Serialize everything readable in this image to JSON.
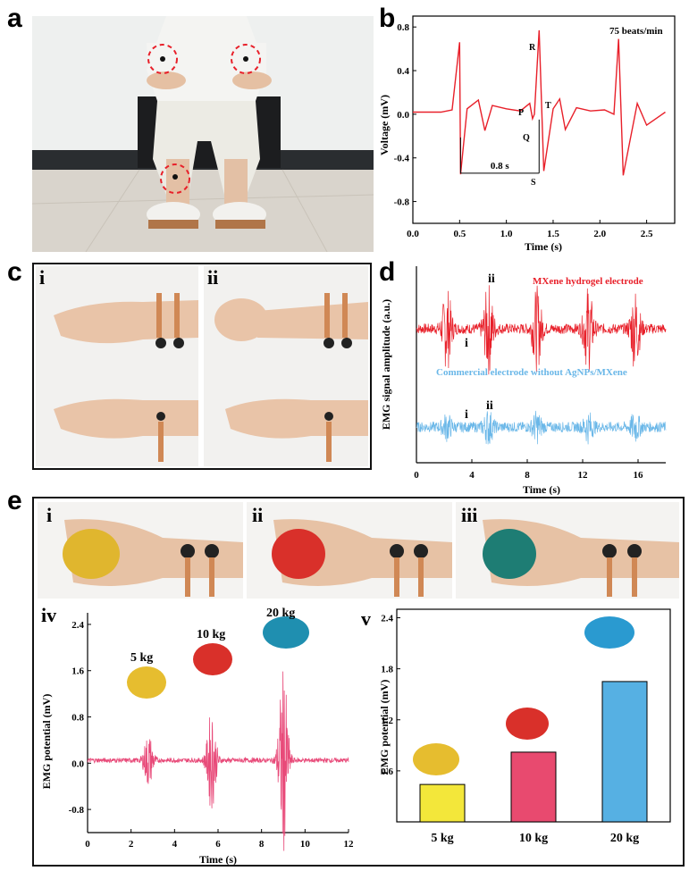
{
  "panels": {
    "a": {
      "letter": "a"
    },
    "b": {
      "letter": "b",
      "annotation": "75 beats/min",
      "interval_label": "0.8 s",
      "wave_labels": [
        "P",
        "Q",
        "R",
        "S",
        "T"
      ]
    },
    "c": {
      "letter": "c",
      "sub": [
        "i",
        "ii"
      ]
    },
    "d": {
      "letter": "d",
      "sub_top": [
        "i",
        "ii"
      ],
      "sub_bottom": [
        "i",
        "ii"
      ]
    },
    "e": {
      "letter": "e",
      "sub": [
        "i",
        "ii",
        "iii",
        "iv",
        "v"
      ]
    }
  },
  "chart_data": [
    {
      "id": "b",
      "type": "line",
      "xlabel": "Time (s)",
      "ylabel": "Voltage (mV)",
      "xlim": [
        0,
        2.8
      ],
      "ylim": [
        -1.0,
        0.9
      ],
      "xticks": [
        "0.0",
        "0.5",
        "1.0",
        "1.5",
        "2.0",
        "2.5"
      ],
      "yticks": [
        "-0.8",
        "-0.4",
        "0.0",
        "0.4",
        "0.8"
      ],
      "color": "#e8202a",
      "series": [
        {
          "x": [
            0.0,
            0.3,
            0.42,
            0.5,
            0.51,
            0.58,
            0.7,
            0.77,
            0.85,
            1.0,
            1.15,
            1.25,
            1.28,
            1.3,
            1.35,
            1.4,
            1.5,
            1.57,
            1.63,
            1.75,
            1.9,
            2.05,
            2.15,
            2.2,
            2.25,
            2.4,
            2.5,
            2.7
          ],
          "y": [
            0.02,
            0.02,
            0.04,
            0.66,
            -0.55,
            0.05,
            0.13,
            -0.15,
            0.08,
            0.05,
            0.03,
            0.1,
            -0.04,
            0.0,
            0.77,
            -0.52,
            0.05,
            0.14,
            -0.14,
            0.06,
            0.03,
            0.04,
            0.0,
            0.69,
            -0.56,
            0.1,
            -0.1,
            0.02
          ]
        }
      ]
    },
    {
      "id": "d",
      "type": "line",
      "xlabel": "Time (s)",
      "ylabel": "EMG signal amplitude (a.u.)",
      "xlim": [
        0,
        18
      ],
      "xticks": [
        "0",
        "4",
        "8",
        "12",
        "16"
      ],
      "series": [
        {
          "name": "MXene hydrogel electrode",
          "color": "#e8202a",
          "bursts": [
            {
              "t": 2.2,
              "a": 0.9
            },
            {
              "t": 5.2,
              "a": 1.0
            },
            {
              "t": 8.7,
              "a": 0.9
            },
            {
              "t": 12.4,
              "a": 0.95
            },
            {
              "t": 15.8,
              "a": 0.9
            }
          ]
        },
        {
          "name": "Commercial electrode without AgNPs/MXene",
          "color": "#6ab7e8",
          "bursts": [
            {
              "t": 2.2,
              "a": 0.25
            },
            {
              "t": 5.2,
              "a": 0.35
            },
            {
              "t": 8.7,
              "a": 0.3
            },
            {
              "t": 12.4,
              "a": 0.3
            },
            {
              "t": 15.8,
              "a": 0.3
            }
          ]
        }
      ]
    },
    {
      "id": "e-iv",
      "type": "line",
      "xlabel": "Time (s)",
      "ylabel": "EMG potential (mV)",
      "xlim": [
        0,
        12
      ],
      "ylim": [
        -1.2,
        2.6
      ],
      "xticks": [
        "0",
        "2",
        "4",
        "6",
        "8",
        "10",
        "12"
      ],
      "yticks": [
        "-0.8",
        "0.0",
        "0.8",
        "1.6",
        "2.4"
      ],
      "color": "#e84a79",
      "annotations": [
        "5 kg",
        "10 kg",
        "20 kg"
      ],
      "series": [
        {
          "bursts": [
            {
              "t": 2.8,
              "a": 0.45
            },
            {
              "t": 5.7,
              "a": 0.85
            },
            {
              "t": 9.0,
              "a": 1.6
            }
          ]
        }
      ]
    },
    {
      "id": "e-v",
      "type": "bar",
      "ylabel": "EMG potential (mV)",
      "ylim": [
        0.0,
        2.5
      ],
      "yticks": [
        "0.6",
        "1.2",
        "1.8",
        "2.4"
      ],
      "categories": [
        "5 kg",
        "10 kg",
        "20 kg"
      ],
      "values": [
        0.44,
        0.82,
        1.65
      ],
      "colors": [
        "#f3e73a",
        "#e84a6f",
        "#56b0e3"
      ]
    }
  ]
}
